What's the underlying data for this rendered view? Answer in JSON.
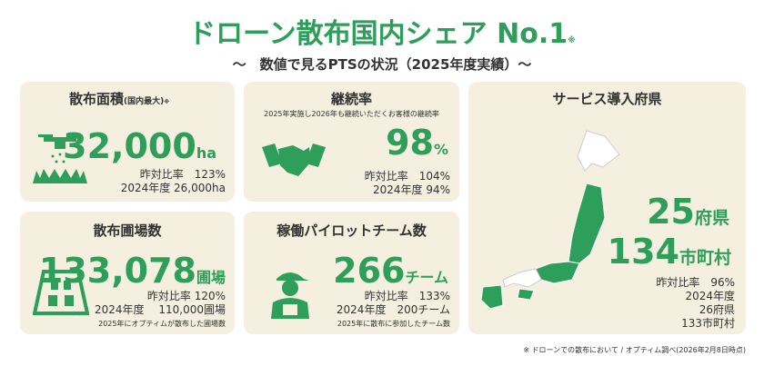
{
  "header": {
    "title": "ドローン散布国内シェア No.1",
    "title_mark": "※",
    "subtitle": "〜　数値で見るPTSの状況（2025年度実績）〜"
  },
  "cards": [
    {
      "title": "散布面積",
      "title_note": "(国内最大)",
      "title_mark": "※",
      "value": "32,000",
      "unit": "ha",
      "lines": [
        "昨対比率　123%",
        "2024年度 26,000ha"
      ]
    },
    {
      "title": "継続率",
      "note": "2025年実施し2026年も継続いただくお客様の継続率",
      "value": "98",
      "unit": "%",
      "lines": [
        "昨対比率　104%",
        "2024年度 94%"
      ]
    },
    {
      "title": "サービス導入府県",
      "value": "25",
      "unit": "府県",
      "value2": "134",
      "unit2": "市町村",
      "lines": [
        "昨対比率　96%",
        "2024年度",
        "26府県",
        "133市町村"
      ]
    },
    {
      "title": "散布圃場数",
      "value": "133,078",
      "unit": "圃場",
      "lines": [
        "昨対比率 120%",
        "2024年度　 110,000圃場"
      ],
      "note": "2025年にオプティムが散布した圃場数"
    },
    {
      "title": "稼働パイロットチーム数",
      "value": "266",
      "unit": "チーム",
      "lines": [
        "昨対比率　133%",
        "2024年度　200チーム"
      ],
      "note": "2025年に散布に参加したチーム数"
    }
  ],
  "footer": "※ ドローンでの散布において / オプティム調べ(2026年2月8日時点)"
}
